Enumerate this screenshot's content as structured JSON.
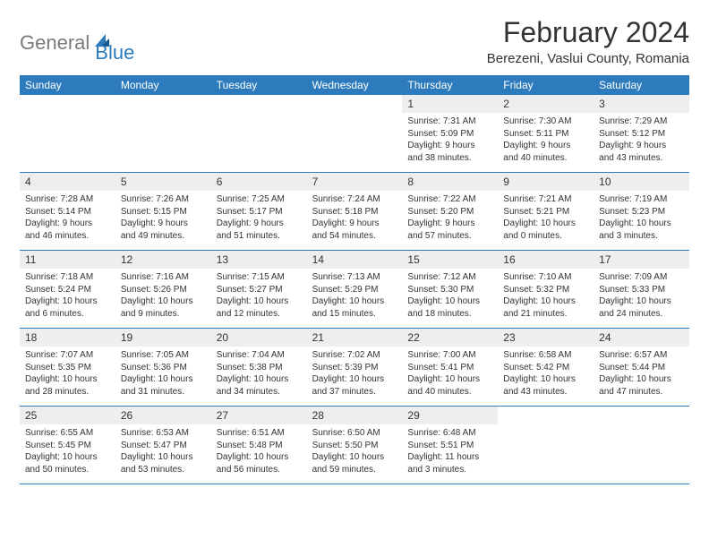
{
  "logo": {
    "general": "General",
    "blue": "Blue"
  },
  "title": "February 2024",
  "location": "Berezeni, Vaslui County, Romania",
  "colors": {
    "accent": "#2d7bbd",
    "header_bg": "#2d7bbd",
    "daynum_bg": "#eeeeee",
    "text": "#333333",
    "logo_gray": "#7a7a7a",
    "background": "#ffffff",
    "row_border": "#2d7bbd"
  },
  "typography": {
    "title_fontsize": 32,
    "location_fontsize": 15,
    "weekday_fontsize": 12,
    "daynum_fontsize": 12,
    "body_fontsize": 10,
    "family": "Arial"
  },
  "weekdays": [
    "Sunday",
    "Monday",
    "Tuesday",
    "Wednesday",
    "Thursday",
    "Friday",
    "Saturday"
  ],
  "weeks": [
    [
      null,
      null,
      null,
      null,
      {
        "n": "1",
        "sunrise": "Sunrise: 7:31 AM",
        "sunset": "Sunset: 5:09 PM",
        "day1": "Daylight: 9 hours",
        "day2": "and 38 minutes."
      },
      {
        "n": "2",
        "sunrise": "Sunrise: 7:30 AM",
        "sunset": "Sunset: 5:11 PM",
        "day1": "Daylight: 9 hours",
        "day2": "and 40 minutes."
      },
      {
        "n": "3",
        "sunrise": "Sunrise: 7:29 AM",
        "sunset": "Sunset: 5:12 PM",
        "day1": "Daylight: 9 hours",
        "day2": "and 43 minutes."
      }
    ],
    [
      {
        "n": "4",
        "sunrise": "Sunrise: 7:28 AM",
        "sunset": "Sunset: 5:14 PM",
        "day1": "Daylight: 9 hours",
        "day2": "and 46 minutes."
      },
      {
        "n": "5",
        "sunrise": "Sunrise: 7:26 AM",
        "sunset": "Sunset: 5:15 PM",
        "day1": "Daylight: 9 hours",
        "day2": "and 49 minutes."
      },
      {
        "n": "6",
        "sunrise": "Sunrise: 7:25 AM",
        "sunset": "Sunset: 5:17 PM",
        "day1": "Daylight: 9 hours",
        "day2": "and 51 minutes."
      },
      {
        "n": "7",
        "sunrise": "Sunrise: 7:24 AM",
        "sunset": "Sunset: 5:18 PM",
        "day1": "Daylight: 9 hours",
        "day2": "and 54 minutes."
      },
      {
        "n": "8",
        "sunrise": "Sunrise: 7:22 AM",
        "sunset": "Sunset: 5:20 PM",
        "day1": "Daylight: 9 hours",
        "day2": "and 57 minutes."
      },
      {
        "n": "9",
        "sunrise": "Sunrise: 7:21 AM",
        "sunset": "Sunset: 5:21 PM",
        "day1": "Daylight: 10 hours",
        "day2": "and 0 minutes."
      },
      {
        "n": "10",
        "sunrise": "Sunrise: 7:19 AM",
        "sunset": "Sunset: 5:23 PM",
        "day1": "Daylight: 10 hours",
        "day2": "and 3 minutes."
      }
    ],
    [
      {
        "n": "11",
        "sunrise": "Sunrise: 7:18 AM",
        "sunset": "Sunset: 5:24 PM",
        "day1": "Daylight: 10 hours",
        "day2": "and 6 minutes."
      },
      {
        "n": "12",
        "sunrise": "Sunrise: 7:16 AM",
        "sunset": "Sunset: 5:26 PM",
        "day1": "Daylight: 10 hours",
        "day2": "and 9 minutes."
      },
      {
        "n": "13",
        "sunrise": "Sunrise: 7:15 AM",
        "sunset": "Sunset: 5:27 PM",
        "day1": "Daylight: 10 hours",
        "day2": "and 12 minutes."
      },
      {
        "n": "14",
        "sunrise": "Sunrise: 7:13 AM",
        "sunset": "Sunset: 5:29 PM",
        "day1": "Daylight: 10 hours",
        "day2": "and 15 minutes."
      },
      {
        "n": "15",
        "sunrise": "Sunrise: 7:12 AM",
        "sunset": "Sunset: 5:30 PM",
        "day1": "Daylight: 10 hours",
        "day2": "and 18 minutes."
      },
      {
        "n": "16",
        "sunrise": "Sunrise: 7:10 AM",
        "sunset": "Sunset: 5:32 PM",
        "day1": "Daylight: 10 hours",
        "day2": "and 21 minutes."
      },
      {
        "n": "17",
        "sunrise": "Sunrise: 7:09 AM",
        "sunset": "Sunset: 5:33 PM",
        "day1": "Daylight: 10 hours",
        "day2": "and 24 minutes."
      }
    ],
    [
      {
        "n": "18",
        "sunrise": "Sunrise: 7:07 AM",
        "sunset": "Sunset: 5:35 PM",
        "day1": "Daylight: 10 hours",
        "day2": "and 28 minutes."
      },
      {
        "n": "19",
        "sunrise": "Sunrise: 7:05 AM",
        "sunset": "Sunset: 5:36 PM",
        "day1": "Daylight: 10 hours",
        "day2": "and 31 minutes."
      },
      {
        "n": "20",
        "sunrise": "Sunrise: 7:04 AM",
        "sunset": "Sunset: 5:38 PM",
        "day1": "Daylight: 10 hours",
        "day2": "and 34 minutes."
      },
      {
        "n": "21",
        "sunrise": "Sunrise: 7:02 AM",
        "sunset": "Sunset: 5:39 PM",
        "day1": "Daylight: 10 hours",
        "day2": "and 37 minutes."
      },
      {
        "n": "22",
        "sunrise": "Sunrise: 7:00 AM",
        "sunset": "Sunset: 5:41 PM",
        "day1": "Daylight: 10 hours",
        "day2": "and 40 minutes."
      },
      {
        "n": "23",
        "sunrise": "Sunrise: 6:58 AM",
        "sunset": "Sunset: 5:42 PM",
        "day1": "Daylight: 10 hours",
        "day2": "and 43 minutes."
      },
      {
        "n": "24",
        "sunrise": "Sunrise: 6:57 AM",
        "sunset": "Sunset: 5:44 PM",
        "day1": "Daylight: 10 hours",
        "day2": "and 47 minutes."
      }
    ],
    [
      {
        "n": "25",
        "sunrise": "Sunrise: 6:55 AM",
        "sunset": "Sunset: 5:45 PM",
        "day1": "Daylight: 10 hours",
        "day2": "and 50 minutes."
      },
      {
        "n": "26",
        "sunrise": "Sunrise: 6:53 AM",
        "sunset": "Sunset: 5:47 PM",
        "day1": "Daylight: 10 hours",
        "day2": "and 53 minutes."
      },
      {
        "n": "27",
        "sunrise": "Sunrise: 6:51 AM",
        "sunset": "Sunset: 5:48 PM",
        "day1": "Daylight: 10 hours",
        "day2": "and 56 minutes."
      },
      {
        "n": "28",
        "sunrise": "Sunrise: 6:50 AM",
        "sunset": "Sunset: 5:50 PM",
        "day1": "Daylight: 10 hours",
        "day2": "and 59 minutes."
      },
      {
        "n": "29",
        "sunrise": "Sunrise: 6:48 AM",
        "sunset": "Sunset: 5:51 PM",
        "day1": "Daylight: 11 hours",
        "day2": "and 3 minutes."
      },
      null,
      null
    ]
  ]
}
